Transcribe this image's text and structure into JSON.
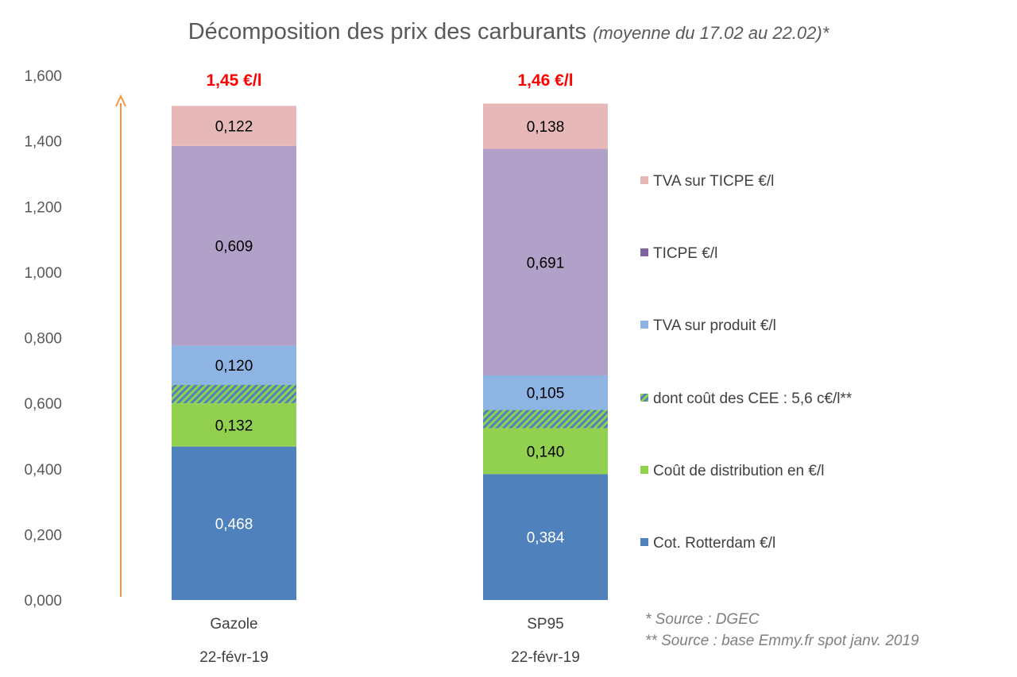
{
  "chart_data": {
    "type": "bar",
    "stacked": true,
    "title": "Décomposition des prix des carburants",
    "subtitle": "(moyenne du 17.02 au 22.02)*",
    "categories": [
      "Gazole",
      "SP95"
    ],
    "category_dates": [
      "22-févr-19",
      "22-févr-19"
    ],
    "totals": [
      "1,45 €/l",
      "1,46 €/l"
    ],
    "ylim": [
      0,
      1.6
    ],
    "yticks": [
      "0,000",
      "0,200",
      "0,400",
      "0,600",
      "0,800",
      "1,000",
      "1,200",
      "1,400",
      "1,600"
    ],
    "grid": false,
    "legend_position": "right",
    "series": [
      {
        "name": "Cot. Rotterdam €/l",
        "values": [
          0.468,
          0.384
        ],
        "labels": [
          "0,468",
          "0,384"
        ],
        "color": "#4f81bd",
        "label_color": "#ffffff"
      },
      {
        "name": "Coût de distribution en €/l",
        "values": [
          0.132,
          0.14
        ],
        "labels": [
          "0,132",
          "0,140"
        ],
        "color": "#92d050",
        "label_color": "#000000"
      },
      {
        "name": "dont coût des CEE : 5,6 c€/l**",
        "values": [
          0.056,
          0.056
        ],
        "labels": [
          "",
          ""
        ],
        "color": "#4f81bd",
        "hatched": true,
        "label_color": "#000000"
      },
      {
        "name": "TVA sur produit €/l",
        "values": [
          0.12,
          0.105
        ],
        "labels": [
          "0,120",
          "0,105"
        ],
        "color": "#8db4e2",
        "label_color": "#000000"
      },
      {
        "name": "TICPE €/l",
        "values": [
          0.609,
          0.691
        ],
        "labels": [
          "0,609",
          "0,691"
        ],
        "color": "#b1a0c7",
        "legend_color": "#8064a2",
        "label_color": "#000000"
      },
      {
        "name": "TVA sur TICPE €/l",
        "values": [
          0.122,
          0.138
        ],
        "labels": [
          "0,122",
          "0,138"
        ],
        "color": "#e6b9b8",
        "label_color": "#000000"
      }
    ],
    "notes": [
      "* Source : DGEC",
      "** Source : base Emmy.fr spot janv. 2019"
    ],
    "colors": {
      "total": "#ff0000",
      "arrow": "#f79646",
      "text": "#595959"
    }
  }
}
